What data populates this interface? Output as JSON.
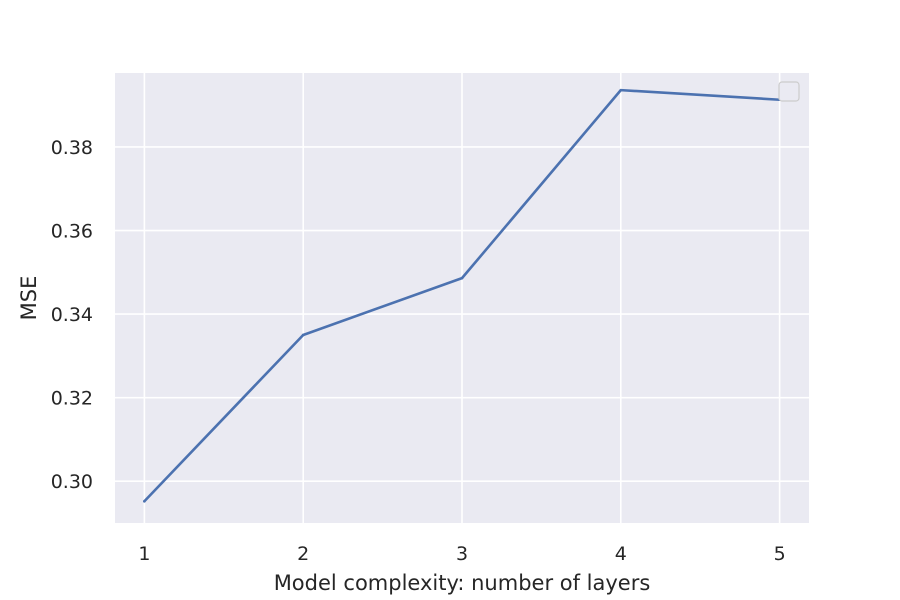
{
  "chart_data": {
    "type": "line",
    "xlabel": "Model complexity: number of layers",
    "ylabel": "MSE",
    "x": [
      1,
      2,
      3,
      4,
      5
    ],
    "xticks": [
      "1",
      "2",
      "3",
      "4",
      "5"
    ],
    "xlim": [
      0.815,
      5.185
    ],
    "yticks": [
      "0.30",
      "0.32",
      "0.34",
      "0.36",
      "0.38"
    ],
    "ytick_values": [
      0.3,
      0.32,
      0.34,
      0.36,
      0.38
    ],
    "ylim": [
      0.29,
      0.3977
    ],
    "grid": true,
    "legend": {
      "placement": "top-right",
      "entries": []
    },
    "series": [
      {
        "values": [
          0.2952,
          0.335,
          0.3486,
          0.3936,
          0.3913
        ],
        "color": "#4c72b0"
      }
    ],
    "colors": {
      "plot_background": "#eaeaf2",
      "grid": "#ffffff",
      "text": "#262626"
    }
  }
}
